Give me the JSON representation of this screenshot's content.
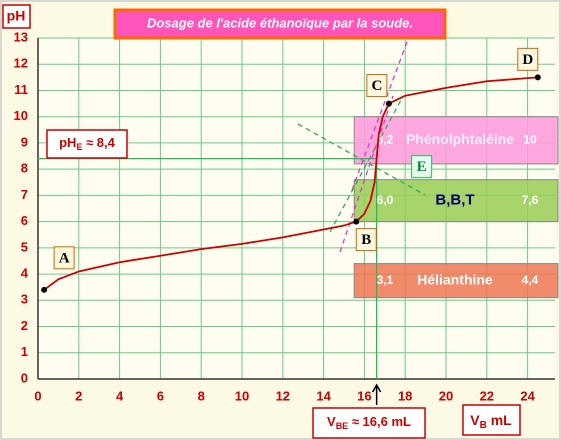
{
  "chart_data": {
    "type": "line",
    "title": "Dosage de  l'acide  éthanoïque par la soude.",
    "y_label": "pH",
    "x_label": {
      "main": "V",
      "sub": "B",
      "rest": " mL"
    },
    "xlim": [
      0,
      25
    ],
    "ylim": [
      0,
      13
    ],
    "xticks": [
      0,
      2,
      4,
      6,
      8,
      10,
      12,
      14,
      16,
      18,
      20,
      22,
      24
    ],
    "yticks": [
      0,
      1,
      2,
      3,
      4,
      5,
      6,
      7,
      8,
      9,
      10,
      11,
      12,
      13
    ],
    "grid": true,
    "series": [
      {
        "color": "#cc0000",
        "x": [
          0.3,
          1,
          2,
          4,
          6,
          8,
          10,
          12,
          14,
          15,
          15.6,
          16,
          16.3,
          16.5,
          16.6,
          16.7,
          16.9,
          17.2,
          18,
          20,
          22,
          24.5
        ],
        "values": [
          3.4,
          3.8,
          4.1,
          4.45,
          4.7,
          4.95,
          5.15,
          5.4,
          5.7,
          5.85,
          6.0,
          6.3,
          6.8,
          7.5,
          8.4,
          9.3,
          10.0,
          10.5,
          10.8,
          11.1,
          11.35,
          11.5
        ]
      }
    ],
    "points": [
      {
        "label": "A",
        "x": 0.3,
        "y": 3.4
      },
      {
        "label": "B",
        "x": 15.6,
        "y": 6.0
      },
      {
        "label": "C",
        "x": 17.2,
        "y": 10.5
      },
      {
        "label": "D",
        "x": 24.5,
        "y": 11.5
      }
    ],
    "equivalence": {
      "label": "E",
      "x": 16.6,
      "y": 8.4,
      "ph_label": {
        "main": "pH",
        "sub": "E",
        "rest": " ≈ 8,4"
      },
      "v_label": {
        "main": "V",
        "sub": "BE",
        "rest": " ≈ 16,6 mL"
      }
    },
    "indicators": [
      {
        "name": "Phénolphtaléine",
        "low": {
          "value": 8.2,
          "label": "8,2"
        },
        "high": 10,
        "color": "#ff99dd"
      },
      {
        "name": "B,B,T",
        "low": {
          "value": 6.0,
          "label": "6,0"
        },
        "high": {
          "value": 7.6,
          "label": "7,6"
        },
        "color": "#99cc55"
      },
      {
        "name": "Hélianthine",
        "low": {
          "value": 3.1,
          "label": "3,1"
        },
        "high": {
          "value": 4.4,
          "label": "4,4"
        },
        "color": "#ee7755"
      }
    ]
  }
}
